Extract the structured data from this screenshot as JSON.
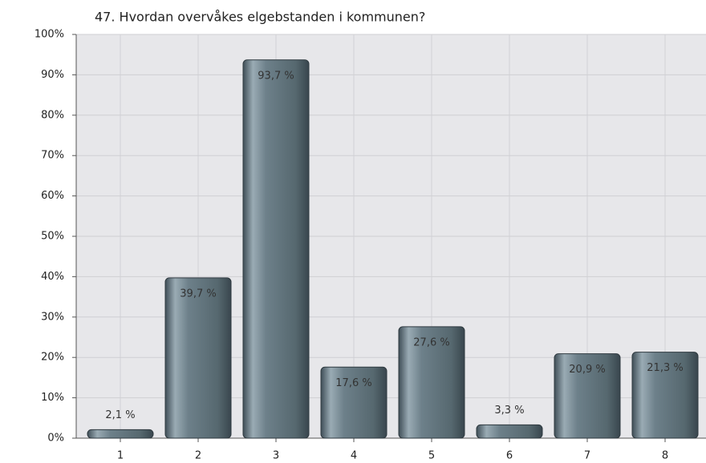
{
  "chart_data": {
    "type": "bar",
    "title": "47. Hvordan overvåkes elgebstanden i kommunen?",
    "categories": [
      "1",
      "2",
      "3",
      "4",
      "5",
      "6",
      "7",
      "8"
    ],
    "values": [
      2.1,
      39.7,
      93.7,
      17.6,
      27.6,
      3.3,
      20.9,
      21.3
    ],
    "value_labels": [
      "2,1 %",
      "39,7 %",
      "93,7 %",
      "17,6 %",
      "27,6 %",
      "3,3 %",
      "20,9 %",
      "21,3 %"
    ],
    "color": "#5f727d",
    "ylim": [
      0,
      100
    ],
    "yticks": [
      {
        "value": 0,
        "label": "0%"
      },
      {
        "value": 10,
        "label": "10%"
      },
      {
        "value": 20,
        "label": "20%"
      },
      {
        "value": 30,
        "label": "30%"
      },
      {
        "value": 40,
        "label": "40%"
      },
      {
        "value": 50,
        "label": "50%"
      },
      {
        "value": 60,
        "label": "60%"
      },
      {
        "value": 70,
        "label": "70%"
      },
      {
        "value": 80,
        "label": "80%"
      },
      {
        "value": 90,
        "label": "90%"
      },
      {
        "value": 100,
        "label": "100%"
      }
    ],
    "grid": true
  }
}
